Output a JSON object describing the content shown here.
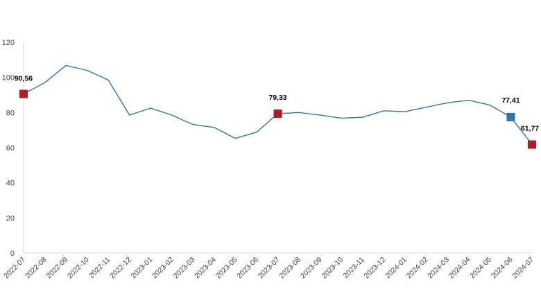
{
  "chart_data": {
    "type": "line",
    "title": "",
    "xlabel": "",
    "ylabel": "",
    "ylim": [
      0,
      120
    ],
    "y_ticks": [
      0,
      20,
      40,
      60,
      80,
      100,
      120
    ],
    "grid": false,
    "legend": "none",
    "categories": [
      "2022-07",
      "2022-08",
      "2022-09",
      "2022-10",
      "2022-11",
      "2022-12",
      "2023-01",
      "2023-02",
      "2023-03",
      "2023-04",
      "2023-05",
      "2023-06",
      "2023-07",
      "2023-08",
      "2023-09",
      "2023-10",
      "2023-11",
      "2023-12",
      "2024-01",
      "2024-02",
      "2024-03",
      "2024-04",
      "2024-05",
      "2024-06",
      "2024-07"
    ],
    "series": [
      {
        "values": [
          90.56,
          97.0,
          106.8,
          104.0,
          98.5,
          78.5,
          82.5,
          78.5,
          73.2,
          71.5,
          65.3,
          68.8,
          79.33,
          80.0,
          78.5,
          76.8,
          77.3,
          81.0,
          80.5,
          83.0,
          85.5,
          87.0,
          84.3,
          77.41,
          61.77
        ],
        "color": "#2E75B6"
      }
    ],
    "highlighted_points": [
      {
        "index": 0,
        "label": "90,56",
        "color": "#B01E24"
      },
      {
        "index": 12,
        "label": "79,33",
        "color": "#B01E24"
      },
      {
        "index": 23,
        "label": "77,41",
        "color": "#2E75B6"
      },
      {
        "index": 24,
        "label": "61,77",
        "color": "#B01E24"
      }
    ]
  }
}
